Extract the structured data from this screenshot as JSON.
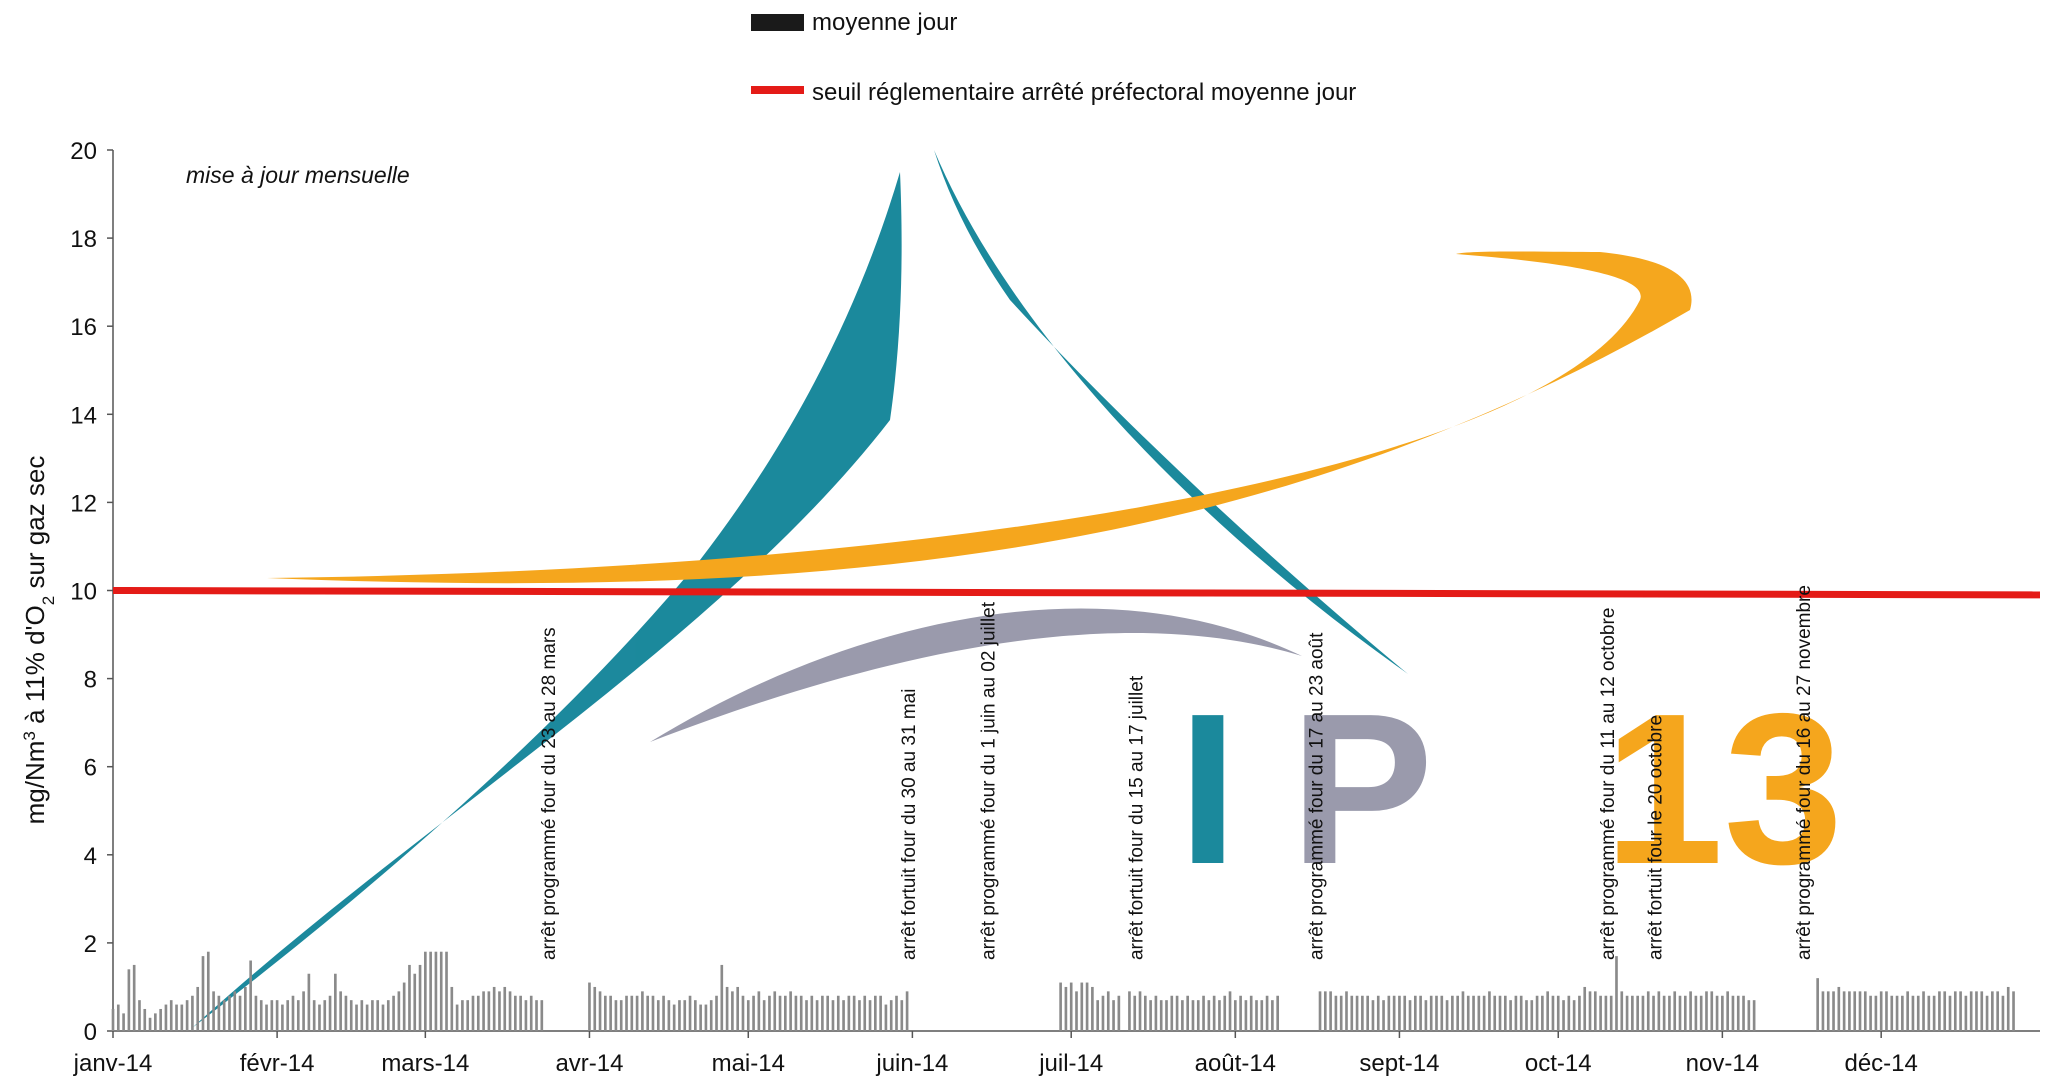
{
  "chart_data": {
    "type": "bar",
    "subtitle": "mise à jour mensuelle",
    "ylabel": "mg/Nm³ à 11% d'O₂ sur gaz sec",
    "ylabel_parts": {
      "pre": "mg/Nm",
      "sup": "3",
      "mid": " à 11% d'O",
      "sub": "2",
      "post": " sur gaz sec"
    },
    "ylim": [
      0,
      20
    ],
    "yticks": [
      0,
      2,
      4,
      6,
      8,
      10,
      12,
      14,
      16,
      18,
      20
    ],
    "xrange_days": [
      1,
      365
    ],
    "xticks": [
      {
        "day": 1,
        "label": "janv-14"
      },
      {
        "day": 32,
        "label": "févr-14"
      },
      {
        "day": 60,
        "label": "mars-14"
      },
      {
        "day": 91,
        "label": "avr-14"
      },
      {
        "day": 121,
        "label": "mai-14"
      },
      {
        "day": 152,
        "label": "juin-14"
      },
      {
        "day": 182,
        "label": "juil-14"
      },
      {
        "day": 213,
        "label": "août-14"
      },
      {
        "day": 244,
        "label": "sept-14"
      },
      {
        "day": 274,
        "label": "oct-14"
      },
      {
        "day": 305,
        "label": "nov-14"
      },
      {
        "day": 335,
        "label": "déc-14"
      }
    ],
    "legend": [
      {
        "name": "moyenne jour",
        "kind": "bar",
        "color": "#1a1a1a"
      },
      {
        "name": "seuil réglementaire arrêté préfectoral moyenne jour",
        "kind": "line",
        "color": "#e41b17"
      }
    ],
    "legend_placement": "top-center",
    "grid": false,
    "series": [
      {
        "name": "moyenne jour",
        "kind": "bar",
        "color": "#8a8a8a",
        "days_start": 1,
        "values": [
          0.5,
          0.6,
          0.4,
          1.4,
          1.5,
          0.7,
          0.5,
          0.3,
          0.4,
          0.5,
          0.6,
          0.7,
          0.6,
          0.6,
          0.7,
          0.8,
          1.0,
          1.7,
          1.8,
          0.9,
          0.8,
          0.7,
          0.8,
          0.9,
          0.8,
          1.0,
          1.6,
          0.8,
          0.7,
          0.6,
          0.7,
          0.7,
          0.6,
          0.7,
          0.8,
          0.7,
          0.9,
          1.3,
          0.7,
          0.6,
          0.7,
          0.8,
          1.3,
          0.9,
          0.8,
          0.7,
          0.6,
          0.7,
          0.6,
          0.7,
          0.7,
          0.6,
          0.7,
          0.8,
          0.9,
          1.1,
          1.5,
          1.3,
          1.5,
          1.8,
          1.8,
          1.8,
          1.8,
          1.8,
          1.0,
          0.6,
          0.7,
          0.7,
          0.8,
          0.8,
          0.9,
          0.9,
          1.0,
          0.9,
          1.0,
          0.9,
          0.8,
          0.8,
          0.7,
          0.8,
          0.7,
          0.7,
          null,
          null,
          null,
          null,
          null,
          null,
          null,
          null,
          1.1,
          1.0,
          0.9,
          0.8,
          0.8,
          0.7,
          0.7,
          0.8,
          0.8,
          0.8,
          0.9,
          0.8,
          0.8,
          0.7,
          0.8,
          0.7,
          0.6,
          0.7,
          0.7,
          0.8,
          0.7,
          0.6,
          0.6,
          0.7,
          0.8,
          1.5,
          1.0,
          0.9,
          1.0,
          0.8,
          0.7,
          0.8,
          0.9,
          0.7,
          0.8,
          0.9,
          0.8,
          0.8,
          0.9,
          0.8,
          0.8,
          0.7,
          0.8,
          0.7,
          0.8,
          0.8,
          0.7,
          0.8,
          0.7,
          0.8,
          0.8,
          0.7,
          0.8,
          0.7,
          0.8,
          0.8,
          0.6,
          0.7,
          0.8,
          0.7,
          0.9,
          null,
          null,
          null,
          null,
          null,
          null,
          null,
          null,
          null,
          null,
          null,
          null,
          null,
          null,
          null,
          null,
          null,
          null,
          null,
          null,
          null,
          null,
          null,
          null,
          null,
          null,
          null,
          null,
          1.1,
          1.0,
          1.1,
          0.9,
          1.1,
          1.1,
          1.0,
          0.7,
          0.8,
          0.9,
          0.7,
          0.8,
          null,
          0.9,
          0.8,
          0.9,
          0.8,
          0.7,
          0.8,
          0.7,
          0.7,
          0.8,
          0.8,
          0.7,
          0.8,
          0.7,
          0.7,
          0.8,
          0.7,
          0.8,
          0.7,
          0.8,
          0.9,
          0.7,
          0.8,
          0.7,
          0.8,
          0.7,
          0.7,
          0.8,
          0.7,
          0.8,
          null,
          null,
          null,
          null,
          null,
          null,
          null,
          0.9,
          0.9,
          0.9,
          0.8,
          0.8,
          0.9,
          0.8,
          0.8,
          0.8,
          0.8,
          0.7,
          0.8,
          0.7,
          0.8,
          0.8,
          0.8,
          0.8,
          0.7,
          0.8,
          0.8,
          0.7,
          0.8,
          0.8,
          0.8,
          0.7,
          0.8,
          0.8,
          0.9,
          0.8,
          0.8,
          0.8,
          0.8,
          0.9,
          0.8,
          0.8,
          0.8,
          0.7,
          0.8,
          0.8,
          0.7,
          0.7,
          0.8,
          0.8,
          0.9,
          0.8,
          0.8,
          0.7,
          0.8,
          0.7,
          0.8,
          1.0,
          0.9,
          0.9,
          0.8,
          0.8,
          0.8,
          1.7,
          0.9,
          0.8,
          0.8,
          0.8,
          0.8,
          0.9,
          0.8,
          0.9,
          0.8,
          0.8,
          0.9,
          0.8,
          0.8,
          0.9,
          0.8,
          0.8,
          0.9,
          0.9,
          0.8,
          0.8,
          0.9,
          0.8,
          0.8,
          0.8,
          0.7,
          0.7,
          null,
          null,
          null,
          null,
          null,
          null,
          null,
          null,
          null,
          null,
          null,
          1.2,
          0.9,
          0.9,
          0.9,
          1.0,
          0.9,
          0.9,
          0.9,
          0.9,
          0.9,
          0.8,
          0.8,
          0.9,
          0.9,
          0.8,
          0.8,
          0.8,
          0.9,
          0.8,
          0.8,
          0.9,
          0.8,
          0.8,
          0.9,
          0.9,
          0.8,
          0.9,
          0.9,
          0.8,
          0.9,
          0.9,
          0.9,
          0.8,
          0.9,
          0.9,
          0.8,
          1.0,
          0.9
        ]
      },
      {
        "name": "seuil réglementaire arrêté préfectoral moyenne jour",
        "kind": "line",
        "color": "#e41b17",
        "days": [
          1,
          365
        ],
        "values": [
          10,
          9.9
        ]
      }
    ],
    "annotations": [
      {
        "day": 83,
        "text": "arrêt programmé four du 23 au 28 mars"
      },
      {
        "day": 151,
        "text": "arrêt fortuit four du 30 au 31 mai"
      },
      {
        "day": 166,
        "text": "arrêt programmé four du 1 juin au 02 juillet"
      },
      {
        "day": 194,
        "text": "arrêt fortuit four du 15 au 17 juillet"
      },
      {
        "day": 228,
        "text": "arrêt programmé four du 17 au 23 août"
      },
      {
        "day": 283,
        "text": "arrêt programmé four du 11 au 12 octobre"
      },
      {
        "day": 292,
        "text": "arrêt fortuit four le 20 octobre"
      },
      {
        "day": 320,
        "text": "arrêt programmé four du 16 au 27 novembre"
      }
    ]
  },
  "watermark": {
    "text": "IP 13",
    "colors": {
      "teal": "#17879b",
      "orange": "#f5a519",
      "grey": "#9899ab"
    }
  }
}
